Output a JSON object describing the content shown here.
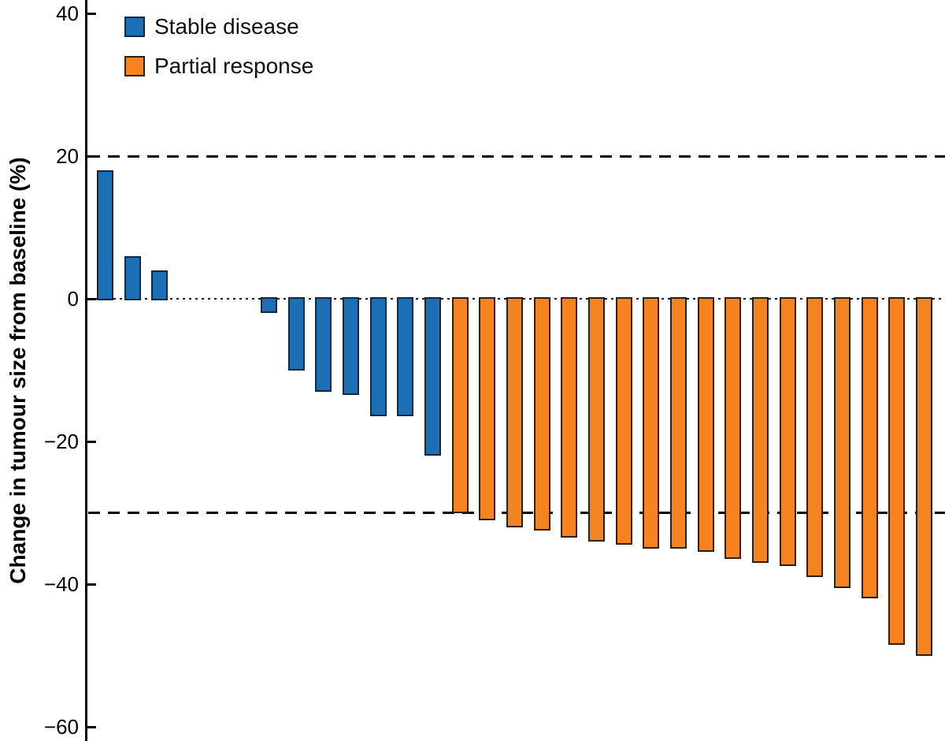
{
  "chart_data": {
    "type": "bar",
    "subtype": "waterfall",
    "title": "",
    "xlabel": "",
    "ylabel": "Change in tumour size from baseline (%)",
    "ylim": [
      -62,
      42
    ],
    "grid": false,
    "legend_position": "top-left",
    "yticks": [
      {
        "value": 40,
        "label": "40"
      },
      {
        "value": 20,
        "label": "20"
      },
      {
        "value": 0,
        "label": "0"
      },
      {
        "value": -20,
        "label": "−20"
      },
      {
        "value": -40,
        "label": "−40"
      },
      {
        "value": -60,
        "label": "−60"
      }
    ],
    "reference_lines": [
      {
        "y": 20,
        "style": "dashed"
      },
      {
        "y": 0,
        "style": "dotted"
      },
      {
        "y": -30,
        "style": "dashed"
      }
    ],
    "groups": [
      {
        "id": "stable",
        "label": "Stable disease",
        "color": "#1b6fb5",
        "edge": "#15273f"
      },
      {
        "id": "partial",
        "label": "Partial response",
        "color": "#f58320",
        "edge": "#2b2013"
      }
    ],
    "bars": [
      {
        "group": "stable",
        "value": 18
      },
      {
        "group": "stable",
        "value": 6
      },
      {
        "group": "stable",
        "value": 4
      },
      {
        "group": "stable",
        "value": 0
      },
      {
        "group": "stable",
        "value": 0
      },
      {
        "group": "stable",
        "value": 0
      },
      {
        "group": "stable",
        "value": -2
      },
      {
        "group": "stable",
        "value": -10
      },
      {
        "group": "stable",
        "value": -13
      },
      {
        "group": "stable",
        "value": -13.5
      },
      {
        "group": "stable",
        "value": -16.5
      },
      {
        "group": "stable",
        "value": -16.5
      },
      {
        "group": "stable",
        "value": -22
      },
      {
        "group": "partial",
        "value": -30
      },
      {
        "group": "partial",
        "value": -31
      },
      {
        "group": "partial",
        "value": -32
      },
      {
        "group": "partial",
        "value": -32.5
      },
      {
        "group": "partial",
        "value": -33.5
      },
      {
        "group": "partial",
        "value": -34
      },
      {
        "group": "partial",
        "value": -34.5
      },
      {
        "group": "partial",
        "value": -35
      },
      {
        "group": "partial",
        "value": -35
      },
      {
        "group": "partial",
        "value": -35.5
      },
      {
        "group": "partial",
        "value": -36.5
      },
      {
        "group": "partial",
        "value": -37
      },
      {
        "group": "partial",
        "value": -37.5
      },
      {
        "group": "partial",
        "value": -39
      },
      {
        "group": "partial",
        "value": -40.5
      },
      {
        "group": "partial",
        "value": -42
      },
      {
        "group": "partial",
        "value": -48.5
      },
      {
        "group": "partial",
        "value": -50
      }
    ]
  }
}
